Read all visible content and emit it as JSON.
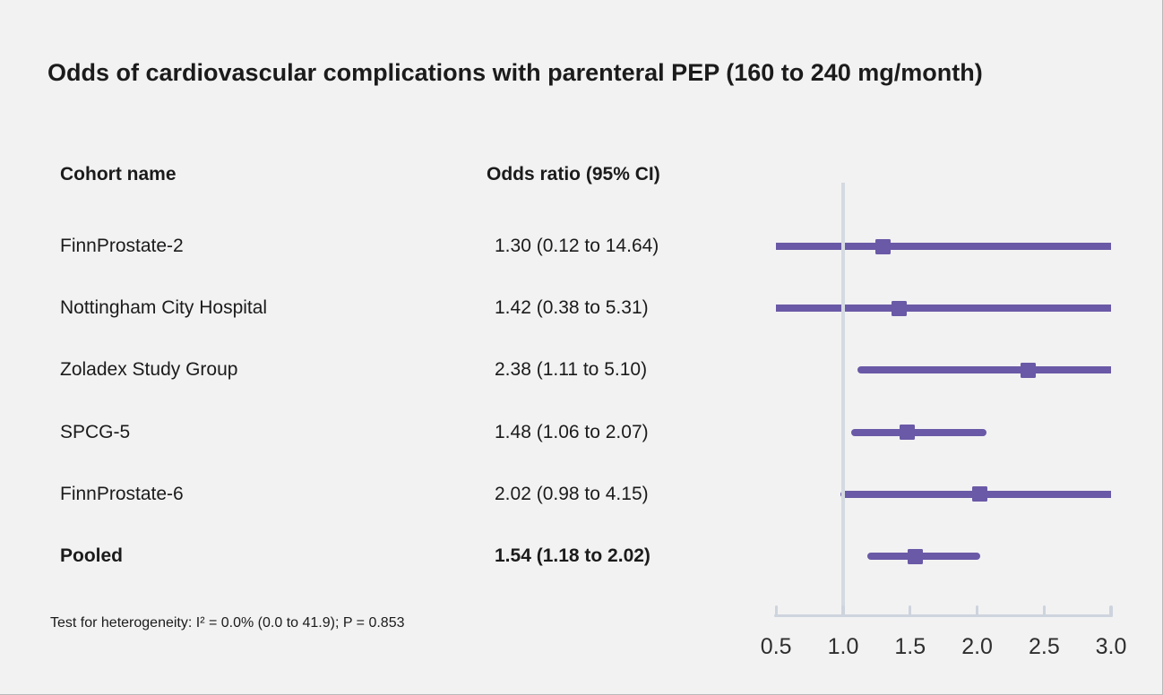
{
  "title": "Odds of cardiovascular complications with parenteral PEP (160 to 240 mg/month)",
  "table": {
    "cohort_header": "Cohort name",
    "or_header": "Odds ratio (95% CI)"
  },
  "footnote": "Test for heterogeneity: I² = 0.0% (0.0 to 41.9); P = 0.853",
  "chart_data": {
    "type": "forest",
    "title": "Odds of cardiovascular complications with parenteral PEP (160 to 240 mg/month)",
    "effect_measure": "Odds ratio (95% CI)",
    "rows": [
      {
        "name": "FinnProstate-2",
        "or_label": "1.30 (0.12 to 14.64)",
        "estimate": 1.3,
        "ci_low": 0.12,
        "ci_high": 14.64,
        "pooled": false
      },
      {
        "name": "Nottingham City Hospital",
        "or_label": "1.42 (0.38 to 5.31)",
        "estimate": 1.42,
        "ci_low": 0.38,
        "ci_high": 5.31,
        "pooled": false
      },
      {
        "name": "Zoladex Study Group",
        "or_label": "2.38 (1.11 to 5.10)",
        "estimate": 2.38,
        "ci_low": 1.11,
        "ci_high": 5.1,
        "pooled": false
      },
      {
        "name": "SPCG-5",
        "or_label": "1.48 (1.06 to 2.07)",
        "estimate": 1.48,
        "ci_low": 1.06,
        "ci_high": 2.07,
        "pooled": false
      },
      {
        "name": "FinnProstate-6",
        "or_label": "2.02 (0.98 to 4.15)",
        "estimate": 2.02,
        "ci_low": 0.98,
        "ci_high": 4.15,
        "pooled": false
      },
      {
        "name": "Pooled",
        "or_label": "1.54 (1.18 to 2.02)",
        "estimate": 1.54,
        "ci_low": 1.18,
        "ci_high": 2.02,
        "pooled": true
      }
    ],
    "x_axis": {
      "min": 0.5,
      "max": 3.0,
      "ticks": [
        0.5,
        1.0,
        1.5,
        2.0,
        2.5,
        3.0
      ],
      "tick_labels": [
        "0.5",
        "1.0",
        "1.5",
        "2.0",
        "2.5",
        "3.0"
      ],
      "reference_line": 1.0,
      "grid": false
    },
    "heterogeneity_note": "Test for heterogeneity: I² = 0.0% (0.0 to 41.9); P = 0.853",
    "colors": {
      "marker": "#6a59a6",
      "ci_line": "#6a59a6",
      "reference_line": "#d5d9e1",
      "axis": "#ced4dd",
      "background": "#f2f2f3",
      "text": "#1b1b1b"
    }
  }
}
